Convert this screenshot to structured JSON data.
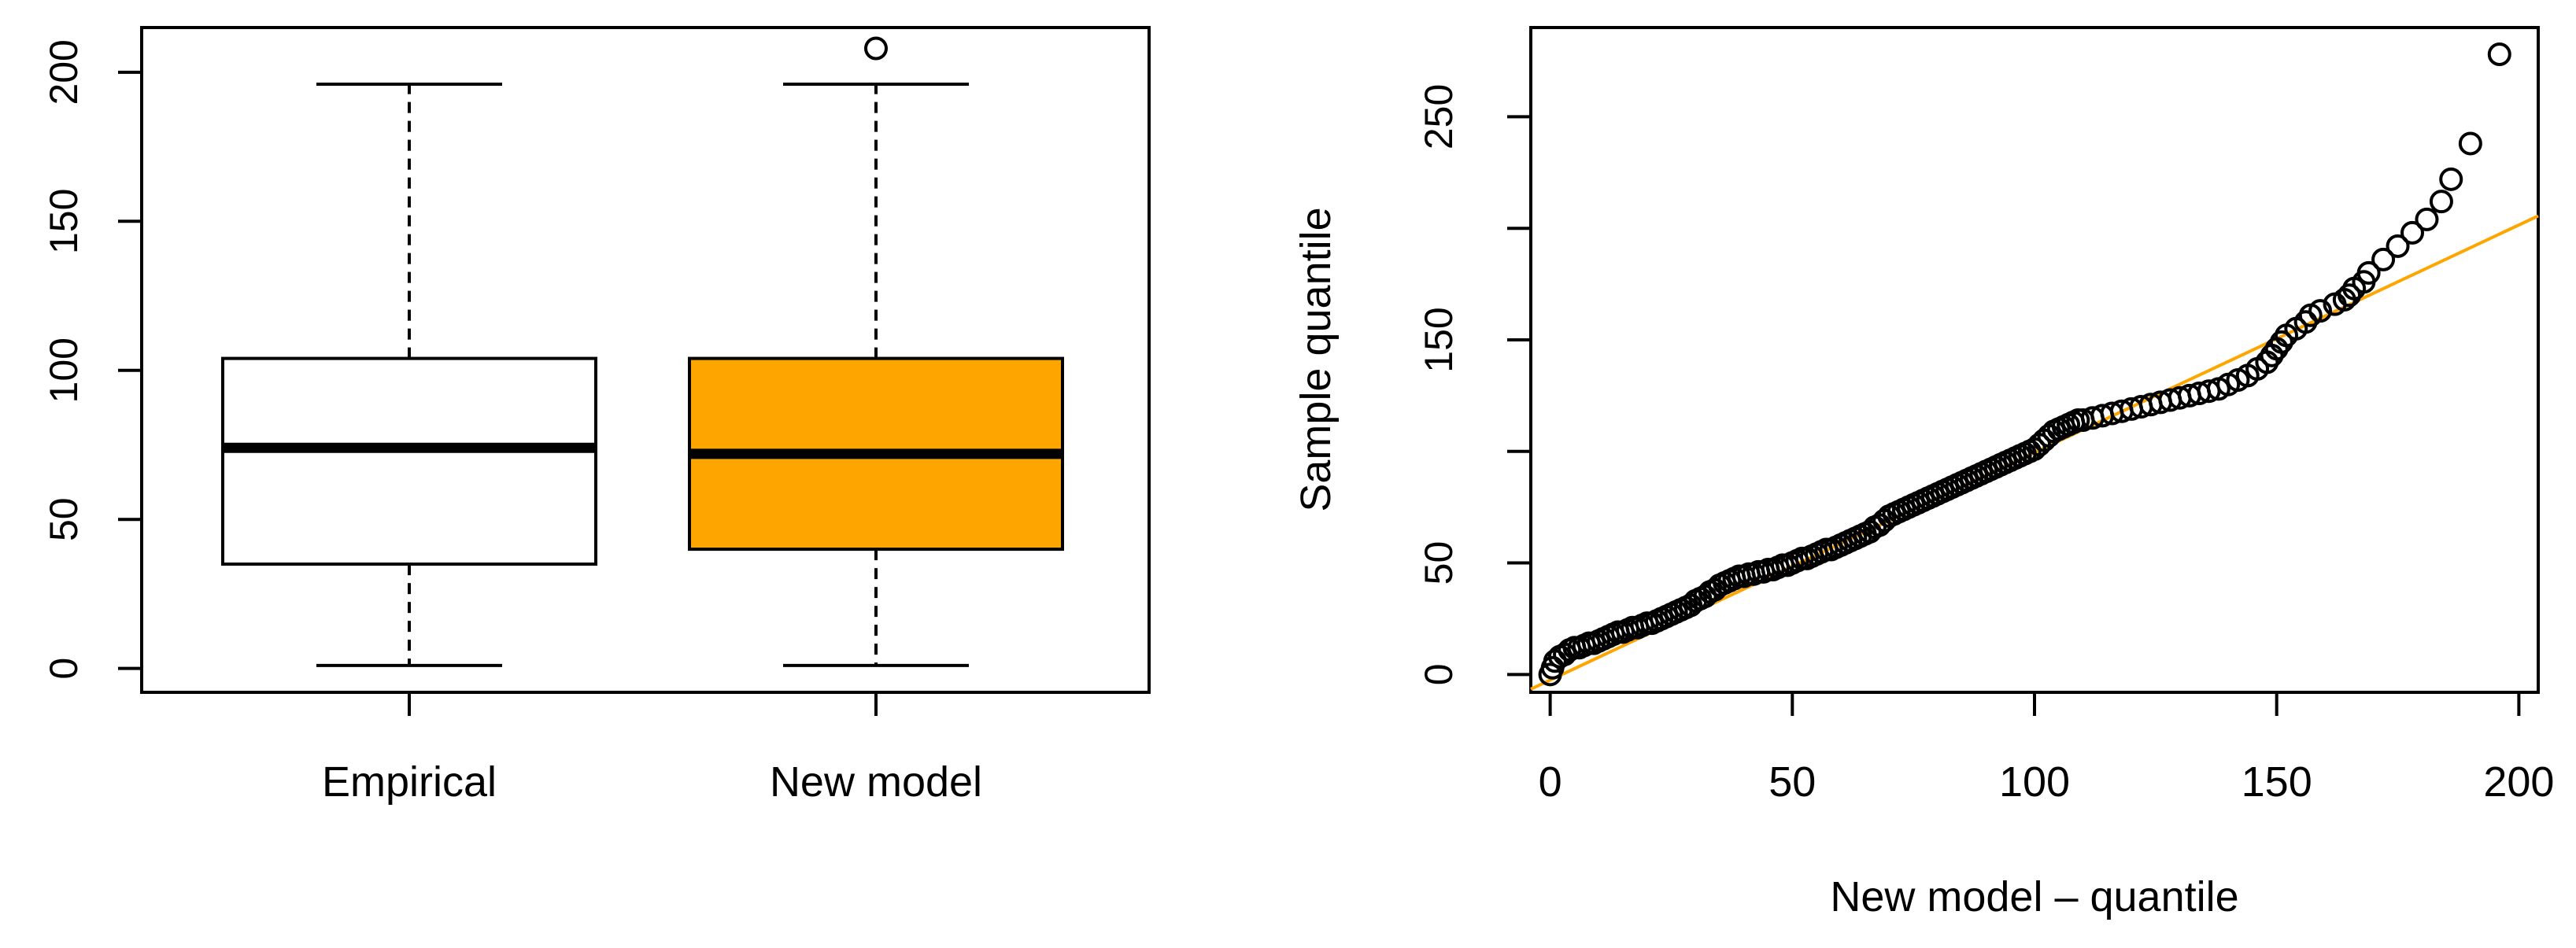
{
  "colors": {
    "accent": "#FFA500",
    "stroke": "#000000",
    "background": "#FFFFFF"
  },
  "chart_data": [
    {
      "type": "boxplot",
      "title": "",
      "xlabel": "",
      "ylabel": "",
      "ylim": [
        -8,
        215
      ],
      "y_ticks": [
        "0",
        "50",
        "100",
        "150",
        "200"
      ],
      "grid": false,
      "boxes": [
        {
          "label": "Empirical",
          "fill": "#FFFFFF",
          "whisker_low": 1,
          "q1": 35,
          "median": 74,
          "q3": 104,
          "whisker_high": 196,
          "outliers": []
        },
        {
          "label": "New model",
          "fill": "#FFA500",
          "whisker_low": 1,
          "q1": 40,
          "median": 72,
          "q3": 104,
          "whisker_high": 196,
          "outliers": [
            208
          ]
        }
      ]
    },
    {
      "type": "scatter",
      "subtype": "qq-plot",
      "title": "",
      "xlabel": "New model – quantile",
      "ylabel": "Sample quantile",
      "xlim": [
        -4,
        204
      ],
      "ylim": [
        -8,
        290
      ],
      "x_ticks": [
        "0",
        "50",
        "100",
        "150",
        "200"
      ],
      "y_ticks": [
        "0",
        "50",
        "150",
        "250"
      ],
      "grid": false,
      "reference_line": {
        "intercept": -2.5,
        "slope": 1.02,
        "color": "#FFA500"
      },
      "points_xy": [
        [
          0,
          0
        ],
        [
          0.5,
          3
        ],
        [
          1,
          6
        ],
        [
          2,
          8
        ],
        [
          3,
          9
        ],
        [
          4,
          11
        ],
        [
          5,
          12
        ],
        [
          6,
          12
        ],
        [
          7,
          13
        ],
        [
          8,
          14
        ],
        [
          9,
          14
        ],
        [
          10,
          15
        ],
        [
          11,
          16
        ],
        [
          12,
          17
        ],
        [
          13,
          18
        ],
        [
          14,
          19
        ],
        [
          15,
          19
        ],
        [
          16,
          20
        ],
        [
          17,
          21
        ],
        [
          18,
          21
        ],
        [
          19,
          22
        ],
        [
          20,
          23
        ],
        [
          21,
          23
        ],
        [
          22,
          24
        ],
        [
          23,
          25
        ],
        [
          24,
          26
        ],
        [
          25,
          27
        ],
        [
          26,
          28
        ],
        [
          27,
          29
        ],
        [
          28,
          30
        ],
        [
          29,
          31
        ],
        [
          30,
          33
        ],
        [
          31,
          34
        ],
        [
          32,
          35
        ],
        [
          33,
          37
        ],
        [
          34,
          38
        ],
        [
          35,
          40
        ],
        [
          36,
          41
        ],
        [
          37,
          42
        ],
        [
          38,
          43
        ],
        [
          39,
          44
        ],
        [
          40,
          44
        ],
        [
          41,
          45
        ],
        [
          42,
          45
        ],
        [
          43,
          46
        ],
        [
          44,
          46
        ],
        [
          45,
          47
        ],
        [
          46,
          47
        ],
        [
          47,
          48
        ],
        [
          48,
          49
        ],
        [
          49,
          49
        ],
        [
          50,
          50
        ],
        [
          51,
          51
        ],
        [
          52,
          52
        ],
        [
          53,
          52
        ],
        [
          54,
          53
        ],
        [
          55,
          54
        ],
        [
          56,
          55
        ],
        [
          57,
          56
        ],
        [
          58,
          56
        ],
        [
          59,
          57
        ],
        [
          60,
          58
        ],
        [
          61,
          59
        ],
        [
          62,
          60
        ],
        [
          63,
          61
        ],
        [
          64,
          62
        ],
        [
          65,
          63
        ],
        [
          66,
          64
        ],
        [
          67,
          66
        ],
        [
          68,
          67
        ],
        [
          69,
          69
        ],
        [
          70,
          71
        ],
        [
          71,
          72
        ],
        [
          72,
          73
        ],
        [
          73,
          74
        ],
        [
          74,
          75
        ],
        [
          75,
          76
        ],
        [
          76,
          77
        ],
        [
          77,
          78
        ],
        [
          78,
          79
        ],
        [
          79,
          80
        ],
        [
          80,
          81
        ],
        [
          81,
          82
        ],
        [
          82,
          83
        ],
        [
          83,
          84
        ],
        [
          84,
          85
        ],
        [
          85,
          86
        ],
        [
          86,
          87
        ],
        [
          87,
          88
        ],
        [
          88,
          89
        ],
        [
          89,
          90
        ],
        [
          90,
          91
        ],
        [
          91,
          92
        ],
        [
          92,
          93
        ],
        [
          93,
          94
        ],
        [
          94,
          95
        ],
        [
          95,
          96
        ],
        [
          96,
          97
        ],
        [
          97,
          98
        ],
        [
          98,
          99
        ],
        [
          99,
          100
        ],
        [
          100,
          101
        ],
        [
          101,
          103
        ],
        [
          102,
          105
        ],
        [
          103,
          107
        ],
        [
          104,
          109
        ],
        [
          105,
          110
        ],
        [
          106,
          111
        ],
        [
          107,
          112
        ],
        [
          108,
          113
        ],
        [
          109,
          114
        ],
        [
          110,
          114
        ],
        [
          112,
          115
        ],
        [
          114,
          116
        ],
        [
          116,
          117
        ],
        [
          118,
          118
        ],
        [
          120,
          119
        ],
        [
          122,
          120
        ],
        [
          124,
          121
        ],
        [
          126,
          122
        ],
        [
          128,
          123
        ],
        [
          130,
          124
        ],
        [
          132,
          125
        ],
        [
          134,
          126
        ],
        [
          136,
          127
        ],
        [
          138,
          128
        ],
        [
          140,
          130
        ],
        [
          142,
          132
        ],
        [
          144,
          134
        ],
        [
          146,
          137
        ],
        [
          148,
          140
        ],
        [
          149,
          143
        ],
        [
          150,
          146
        ],
        [
          151,
          149
        ],
        [
          152,
          152
        ],
        [
          154,
          155
        ],
        [
          156,
          158
        ],
        [
          157,
          161
        ],
        [
          159,
          163
        ],
        [
          162,
          166
        ],
        [
          164,
          168
        ],
        [
          165,
          170
        ],
        [
          166,
          173
        ],
        [
          168,
          176
        ],
        [
          169,
          180
        ],
        [
          172,
          186
        ],
        [
          175,
          192
        ],
        [
          178,
          198
        ],
        [
          181,
          204
        ],
        [
          184,
          212
        ],
        [
          186,
          222
        ],
        [
          190,
          238
        ],
        [
          196,
          278
        ]
      ]
    }
  ]
}
